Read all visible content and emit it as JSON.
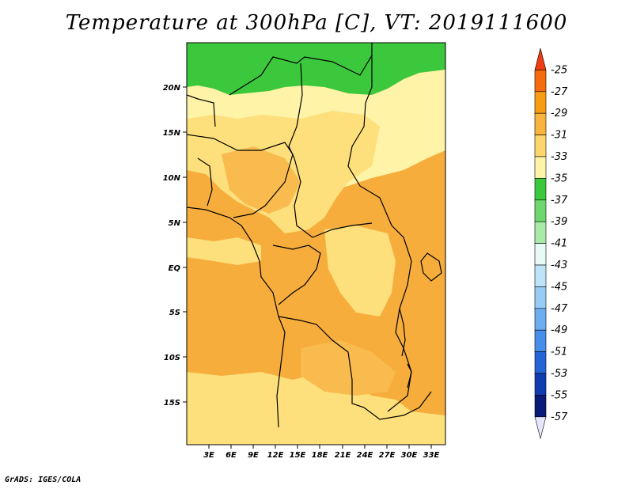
{
  "title": "Temperature at 300hPa [C], VT: 2019111600",
  "credit": "GrADS: IGES/COLA",
  "map": {
    "lat_labels": [
      "20N",
      "15N",
      "10N",
      "5N",
      "EQ",
      "5S",
      "10S",
      "15S"
    ],
    "lon_labels": [
      "3E",
      "6E",
      "9E",
      "12E",
      "15E",
      "18E",
      "21E",
      "24E",
      "27E",
      "30E",
      "33E"
    ],
    "field_colors": {
      "green": "#3cc83c",
      "light_yellow": "#fff3a8",
      "yellow": "#fde07c",
      "orange_light": "#f9bb4e",
      "orange": "#f6ad3c"
    }
  },
  "colorbar": {
    "labels": [
      "-25",
      "-27",
      "-29",
      "-31",
      "-33",
      "-35",
      "-37",
      "-39",
      "-41",
      "-43",
      "-45",
      "-47",
      "-49",
      "-51",
      "-53",
      "-55",
      "-57"
    ],
    "colors": [
      "#f03c14",
      "#f66c0c",
      "#f69d14",
      "#f8b43c",
      "#fcd56e",
      "#fff3a8",
      "#3cc83c",
      "#6ed86e",
      "#a9eaa9",
      "#e6fbf6",
      "#bfe3f9",
      "#97cdf5",
      "#6eaef0",
      "#468eea",
      "#2464d6",
      "#0f3cb0",
      "#0a1a78",
      "#e6e6fa"
    ]
  }
}
